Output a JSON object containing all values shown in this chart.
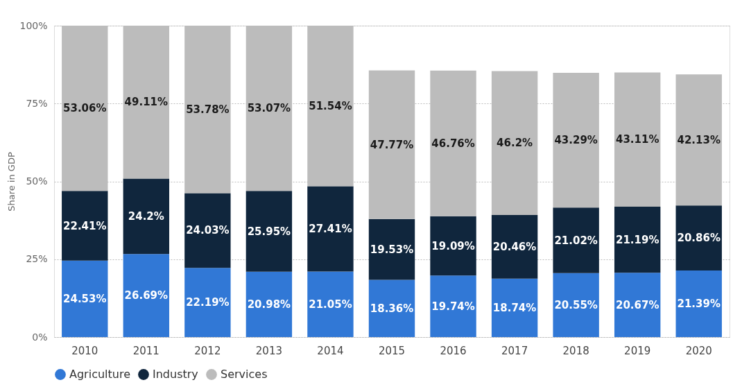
{
  "chart_data": {
    "type": "bar",
    "stacked": true,
    "ylabel": "Share in GDP",
    "categories": [
      "2010",
      "2011",
      "2012",
      "2013",
      "2014",
      "2015",
      "2016",
      "2017",
      "2018",
      "2019",
      "2020"
    ],
    "series": [
      {
        "name": "Agriculture",
        "color": "#3178d6",
        "values": [
          24.53,
          26.69,
          22.19,
          20.98,
          21.05,
          18.36,
          19.74,
          18.74,
          20.55,
          20.67,
          21.39
        ],
        "value_labels": [
          "24.53%",
          "26.69%",
          "22.19%",
          "20.98%",
          "21.05%",
          "18.36%",
          "19.74%",
          "18.74%",
          "20.55%",
          "20.67%",
          "21.39%"
        ]
      },
      {
        "name": "Industry",
        "color": "#10263d",
        "values": [
          22.41,
          24.2,
          24.03,
          25.95,
          27.41,
          19.53,
          19.09,
          20.46,
          21.02,
          21.19,
          20.86
        ],
        "value_labels": [
          "22.41%",
          "24.2%",
          "24.03%",
          "25.95%",
          "27.41%",
          "19.53%",
          "19.09%",
          "20.46%",
          "21.02%",
          "21.19%",
          "20.86%"
        ]
      },
      {
        "name": "Services",
        "color": "#bcbcbc",
        "values": [
          53.06,
          49.11,
          53.78,
          53.07,
          51.54,
          47.77,
          46.76,
          46.2,
          43.29,
          43.11,
          42.13
        ],
        "value_labels": [
          "53.06%",
          "49.11%",
          "53.78%",
          "53.07%",
          "51.54%",
          "47.77%",
          "46.76%",
          "46.2%",
          "43.29%",
          "43.11%",
          "42.13%"
        ]
      }
    ],
    "ylim": [
      0,
      100
    ],
    "yticks": [
      {
        "value": 0,
        "label": "0%"
      },
      {
        "value": 25,
        "label": "25%"
      },
      {
        "value": 50,
        "label": "50%"
      },
      {
        "value": 75,
        "label": "75%"
      },
      {
        "value": 100,
        "label": "100%"
      }
    ],
    "grid": "y",
    "legend": "bottom"
  }
}
